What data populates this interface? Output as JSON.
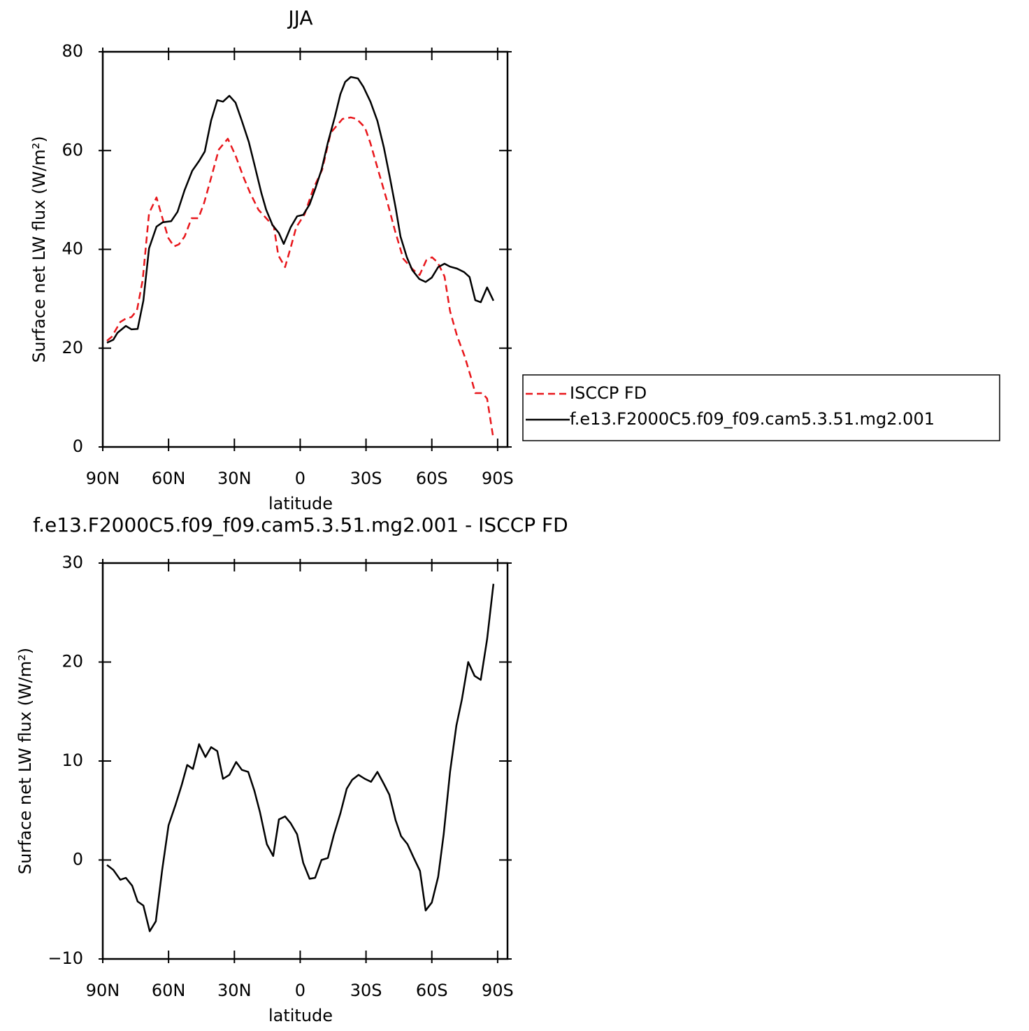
{
  "chart_data": [
    {
      "type": "line",
      "title": "JJA",
      "xlabel": "latitude",
      "ylabel": "Surface net LW flux (W/m²)",
      "xlim": [
        90,
        -94.5
      ],
      "xticks": [
        {
          "value": 90,
          "label": "90N"
        },
        {
          "value": 60,
          "label": "60N"
        },
        {
          "value": 30,
          "label": "30N"
        },
        0,
        {
          "value": -30,
          "label": "30S"
        },
        {
          "value": -60,
          "label": "60S"
        },
        {
          "value": -90,
          "label": "90S"
        }
      ],
      "ylim": [
        0,
        80
      ],
      "yticks": [
        0,
        20,
        40,
        60,
        80
      ],
      "legend": "right",
      "series": [
        {
          "name": "ISCCP FD",
          "color": "#e8161b",
          "dash": true,
          "x": [
            88.1,
            85.9,
            82.0,
            79.5,
            76.9,
            74.4,
            71.8,
            68.9,
            65.5,
            62.6,
            60.1,
            57.5,
            55.3,
            52.7,
            49.5,
            46.4,
            43.8,
            40.3,
            37.1,
            33.0,
            29.5,
            26.0,
            22.8,
            19.0,
            15.5,
            12.0,
            10.0,
            6.9,
            4.0,
            1.8,
            -2.0,
            -5.9,
            -10.0,
            -13.9,
            -19.3,
            -23.1,
            -25.7,
            -29.5,
            -32.0,
            -35.8,
            -39.4,
            -43.2,
            -47.0,
            -51.2,
            -54.4,
            -57.5,
            -60.1,
            -62.6,
            -65.8,
            -68.3,
            -71.5,
            -75.0,
            -77.9,
            -79.8,
            -83.0,
            -85.2,
            -88.1
          ],
          "values": [
            21.5,
            22.3,
            25.3,
            26.0,
            26.3,
            27.7,
            33.8,
            47.3,
            50.5,
            46.0,
            42.3,
            40.6,
            41.0,
            42.6,
            46.3,
            46.3,
            49.4,
            55.0,
            60.2,
            62.4,
            59.0,
            54.8,
            51.4,
            48.0,
            46.3,
            44.6,
            38.8,
            36.4,
            40.9,
            44.5,
            47.1,
            52.2,
            56.1,
            63.6,
            66.4,
            66.7,
            66.4,
            64.7,
            61.5,
            55.6,
            50.1,
            43.8,
            38.1,
            36.0,
            34.8,
            37.8,
            38.4,
            37.4,
            34.5,
            27.5,
            22.5,
            18.3,
            14.0,
            10.9,
            10.9,
            9.8,
            1.6
          ]
        },
        {
          "name": "f.e13.F2000C5.f09_f09.cam5.3.51.mg2.001",
          "color": "#000000",
          "dash": false,
          "x": [
            88.1,
            85.2,
            83.3,
            79.5,
            76.9,
            74.1,
            71.5,
            68.9,
            65.5,
            62.6,
            58.8,
            55.9,
            52.7,
            49.2,
            46.1,
            43.5,
            40.6,
            37.8,
            35.2,
            32.3,
            29.5,
            26.6,
            23.4,
            20.9,
            17.7,
            15.5,
            12.6,
            9.7,
            7.5,
            4.3,
            1.4,
            -1.4,
            -4.3,
            -6.8,
            -9.7,
            -12.6,
            -15.8,
            -18.3,
            -20.5,
            -23.1,
            -26.3,
            -28.8,
            -32.0,
            -35.2,
            -38.1,
            -40.9,
            -43.5,
            -45.7,
            -48.6,
            -51.1,
            -54.3,
            -57.2,
            -60.0,
            -62.9,
            -65.8,
            -68.3,
            -71.5,
            -74.7,
            -77.2,
            -79.8,
            -82.3,
            -85.2,
            -88.1
          ],
          "values": [
            21.1,
            21.7,
            23.1,
            24.5,
            23.8,
            23.9,
            29.6,
            40.2,
            44.6,
            45.5,
            45.7,
            47.6,
            52.0,
            55.9,
            57.9,
            59.8,
            66.1,
            70.2,
            69.9,
            71.1,
            69.7,
            66.0,
            61.7,
            57.2,
            51.4,
            48.0,
            44.9,
            43.3,
            41.1,
            44.5,
            46.7,
            47.0,
            49.1,
            52.2,
            56.1,
            61.6,
            66.8,
            71.4,
            73.9,
            74.9,
            74.6,
            72.9,
            69.9,
            66.0,
            60.7,
            54.5,
            48.4,
            42.6,
            38.4,
            35.8,
            34.0,
            33.4,
            34.3,
            36.4,
            37.1,
            36.5,
            36.1,
            35.4,
            34.4,
            29.7,
            29.3,
            32.3,
            29.6
          ]
        }
      ]
    },
    {
      "type": "line",
      "title": "f.e13.F2000C5.f09_f09.cam5.3.51.mg2.001 - ISCCP FD",
      "xlabel": "latitude",
      "ylabel": "Surface net LW flux (W/m²)",
      "xlim": [
        90,
        -94.5
      ],
      "xticks": [
        {
          "value": 90,
          "label": "90N"
        },
        {
          "value": 60,
          "label": "60N"
        },
        {
          "value": 30,
          "label": "30N"
        },
        0,
        {
          "value": -30,
          "label": "30S"
        },
        {
          "value": -60,
          "label": "60S"
        },
        {
          "value": -90,
          "label": "90S"
        }
      ],
      "ylim": [
        -10,
        30
      ],
      "yticks": [
        {
          "value": -10,
          "label": "−10"
        },
        0,
        10,
        20,
        30
      ],
      "series": [
        {
          "color": "#000000",
          "dash": false,
          "x": [
            88.1,
            85.2,
            82.0,
            79.5,
            76.6,
            74.1,
            71.5,
            68.6,
            65.8,
            62.9,
            60.0,
            56.8,
            54.0,
            51.5,
            48.9,
            46.1,
            43.2,
            40.6,
            37.8,
            35.2,
            32.3,
            29.2,
            26.6,
            23.7,
            20.9,
            18.3,
            15.2,
            12.3,
            9.7,
            6.9,
            4.3,
            1.4,
            -1.4,
            -4.3,
            -6.8,
            -9.7,
            -12.6,
            -15.4,
            -18.3,
            -21.2,
            -23.7,
            -26.6,
            -29.5,
            -32.3,
            -35.2,
            -38.1,
            -40.6,
            -43.5,
            -46.0,
            -48.9,
            -51.8,
            -54.6,
            -57.2,
            -60.0,
            -62.9,
            -65.4,
            -68.3,
            -71.2,
            -73.7,
            -76.6,
            -79.5,
            -82.3,
            -85.2,
            -88.1
          ],
          "values": [
            -0.5,
            -1.0,
            -2.0,
            -1.8,
            -2.6,
            -4.2,
            -4.6,
            -7.2,
            -6.2,
            -1.0,
            3.5,
            5.6,
            7.6,
            9.6,
            9.2,
            11.7,
            10.4,
            11.4,
            11.0,
            8.2,
            8.6,
            9.9,
            9.1,
            8.9,
            7.0,
            4.8,
            1.6,
            0.4,
            4.1,
            4.4,
            3.7,
            2.6,
            -0.3,
            -1.9,
            -1.8,
            0.0,
            0.2,
            2.6,
            4.7,
            7.2,
            8.1,
            8.6,
            8.2,
            7.9,
            8.9,
            7.7,
            6.6,
            4.0,
            2.4,
            1.6,
            0.2,
            -1.1,
            -5.1,
            -4.3,
            -1.7,
            2.6,
            8.9,
            13.6,
            16.2,
            20.0,
            18.6,
            18.2,
            22.3,
            27.9
          ]
        }
      ]
    }
  ]
}
